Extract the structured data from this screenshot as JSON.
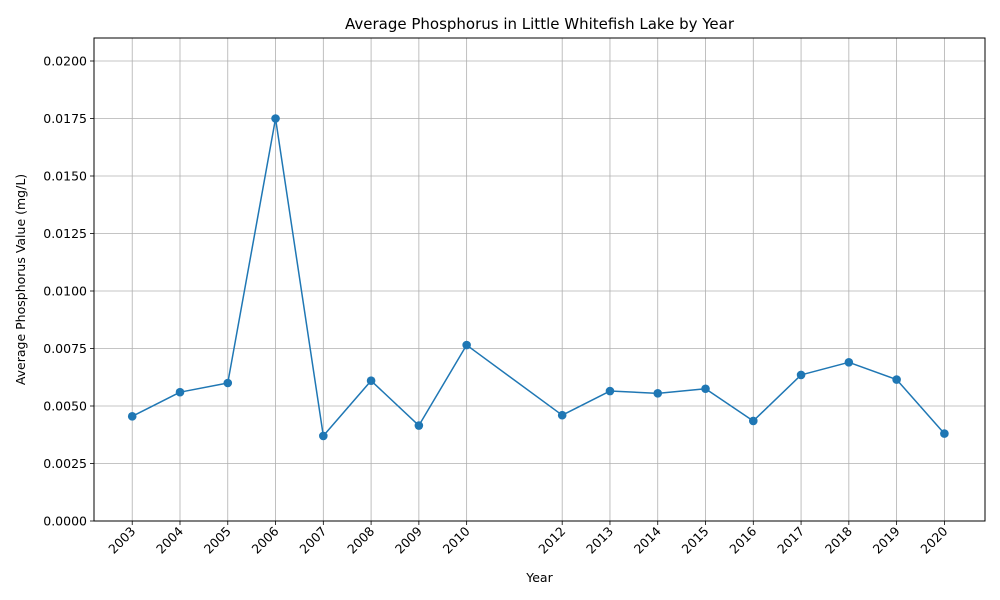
{
  "chart_data": {
    "type": "line",
    "title": "Average Phosphorus in Little Whitefish Lake by Year",
    "xlabel": "Year",
    "ylabel": "Average Phosphorus Value (mg/L)",
    "x": [
      2003,
      2004,
      2005,
      2006,
      2007,
      2008,
      2009,
      2010,
      2012,
      2013,
      2014,
      2015,
      2016,
      2017,
      2018,
      2019,
      2020
    ],
    "y": [
      0.00455,
      0.0056,
      0.006,
      0.0175,
      0.0037,
      0.0061,
      0.00415,
      0.00765,
      0.0046,
      0.00565,
      0.00555,
      0.00575,
      0.00435,
      0.00635,
      0.0069,
      0.00615,
      0.0038
    ],
    "x_tick_labels": [
      "2003",
      "2004",
      "2005",
      "2006",
      "2007",
      "2008",
      "2009",
      "2010",
      "2012",
      "2013",
      "2014",
      "2015",
      "2016",
      "2017",
      "2018",
      "2019",
      "2020"
    ],
    "y_ticks": [
      0.0,
      0.0025,
      0.005,
      0.0075,
      0.01,
      0.0125,
      0.015,
      0.0175,
      0.02
    ],
    "y_tick_labels": [
      "0.0000",
      "0.0025",
      "0.0050",
      "0.0075",
      "0.0100",
      "0.0125",
      "0.0150",
      "0.0175",
      "0.0200"
    ],
    "xlim": [
      2002.2,
      2020.85
    ],
    "ylim": [
      0,
      0.021
    ],
    "grid": true,
    "legend": "none",
    "markers": "circle",
    "line_color": "#1f77b4",
    "grid_color": "#b0b0b0"
  }
}
